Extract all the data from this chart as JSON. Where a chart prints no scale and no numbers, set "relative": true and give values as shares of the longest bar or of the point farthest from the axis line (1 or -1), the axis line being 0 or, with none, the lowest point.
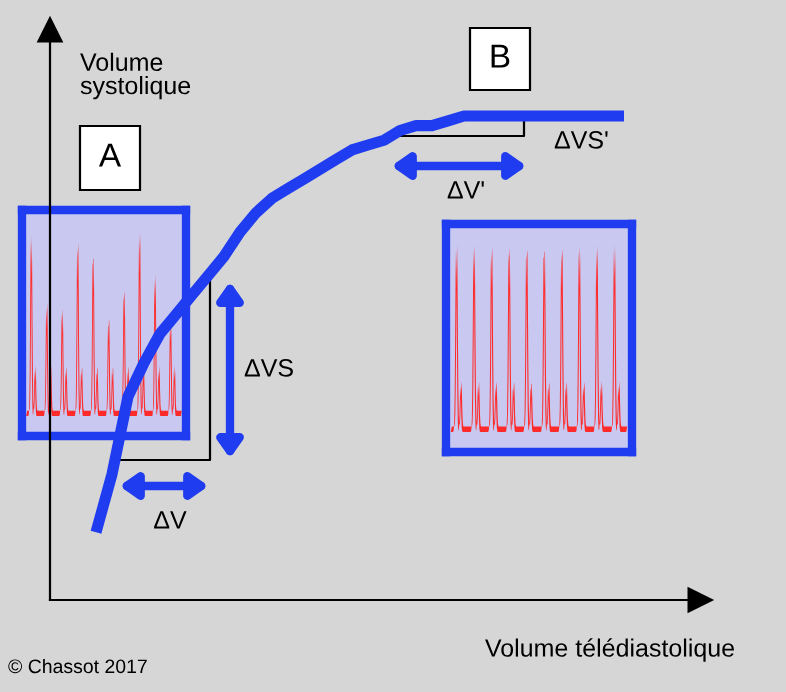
{
  "chart_data": {
    "type": "line",
    "relative": true,
    "xlabel": "Volume télédiastolique",
    "ylabel": "Volume systolique",
    "categories": [
      null,
      null,
      null,
      null,
      null,
      null,
      null,
      null,
      null,
      null,
      null,
      null,
      null,
      null,
      null,
      null,
      null,
      null,
      null,
      null,
      null,
      null,
      null,
      null,
      null,
      null,
      null,
      null,
      null,
      null,
      null,
      null,
      null,
      null
    ],
    "series": [
      {
        "color": "#1f3cf0",
        "values": [
          0.14,
          0.26,
          0.42,
          0.49,
          0.55,
          0.59,
          0.63,
          0.67,
          0.71,
          0.76,
          0.8,
          0.83,
          0.85,
          0.87,
          0.89,
          0.91,
          0.93,
          0.94,
          0.95,
          0.97,
          0.98,
          0.98,
          0.99,
          1,
          1,
          1,
          1,
          1,
          1,
          1,
          1,
          1,
          1,
          1
        ]
      }
    ],
    "annotations": [
      "A",
      "B",
      "ΔVS",
      "ΔV",
      "ΔV'",
      "ΔVS'",
      "© Chassot 2017"
    ],
    "marker": "none",
    "line_style": "solid"
  }
}
